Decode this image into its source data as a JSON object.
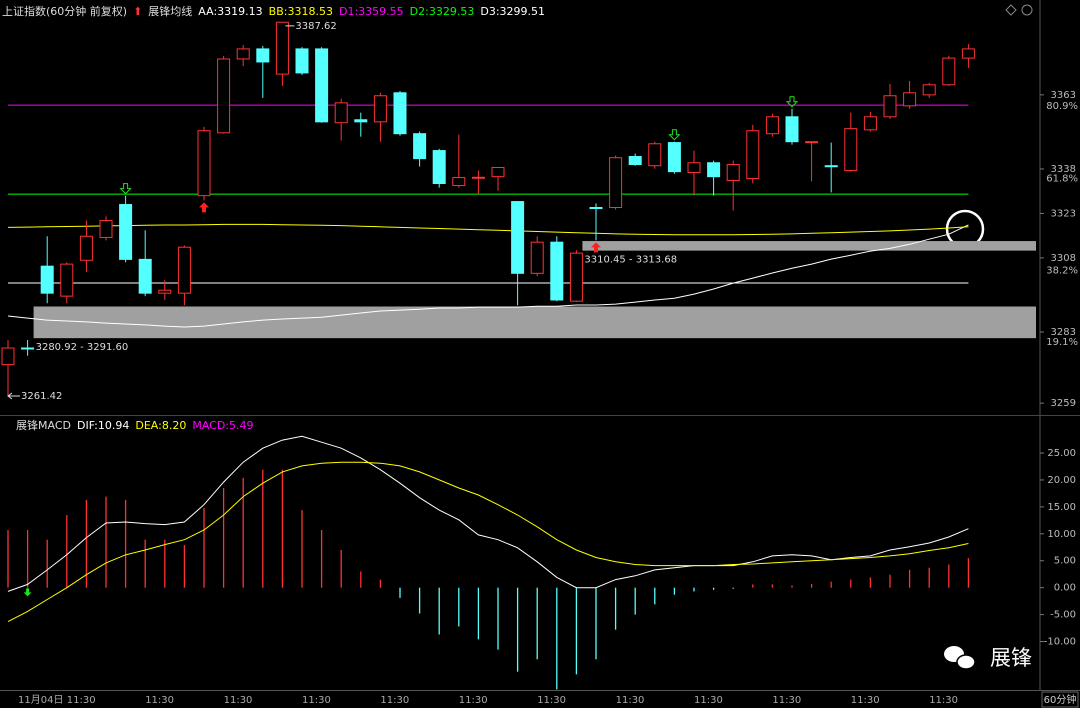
{
  "chart_data": [
    {
      "type": "candlestick",
      "title": "上证指数(60分钟 前复权)",
      "indicator_title": "展锋均线",
      "open": [
        3272,
        3277.6,
        3305.2,
        3295.1,
        3307.2,
        3314.9,
        3326,
        3307.5,
        3296.1,
        3296.1,
        3329,
        3350.2,
        3375.1,
        3378.5,
        3370,
        3378.5,
        3378.5,
        3353.6,
        3354.6,
        3353.9,
        3363.7,
        3349.9,
        3344.2,
        3332.4,
        3335,
        3335.4,
        3327,
        3302.8,
        3313.3,
        3293.4,
        3325,
        3325,
        3342.2,
        3339.1,
        3346.9,
        3336.8,
        3340.1,
        3334.1,
        3334.8,
        3349.9,
        3355.6,
        3346.9,
        3339.1,
        3337.5,
        3351.2,
        3355.6,
        3359.3,
        3363,
        3366.4,
        3375.4
      ],
      "high": [
        3280.3,
        3280.3,
        3315.3,
        3306.5,
        3320.6,
        3322,
        3329,
        3317.3,
        3300.5,
        3312.2,
        3352.2,
        3376.1,
        3379.8,
        3379.5,
        3387.62,
        3379.1,
        3379.1,
        3361.7,
        3357,
        3363.7,
        3364.3,
        3350.6,
        3344.8,
        3349.6,
        3337.5,
        3338.5,
        3327,
        3315.3,
        3315.3,
        3310.6,
        3326.4,
        3342.5,
        3343.2,
        3347.2,
        3347.2,
        3344.2,
        3340.8,
        3340.8,
        3352.9,
        3356.6,
        3358.3,
        3347.2,
        3346.9,
        3357,
        3357.3,
        3366.7,
        3367.7,
        3367,
        3376.1,
        3380.1
      ],
      "low": [
        3261.42,
        3275,
        3292.7,
        3292.7,
        3303.2,
        3313.9,
        3306.5,
        3295.1,
        3293.8,
        3292,
        3327.4,
        3349.9,
        3372.7,
        3362,
        3366,
        3369.7,
        3353.6,
        3347.5,
        3348.9,
        3347.2,
        3349.2,
        3338.8,
        3331.7,
        3331.7,
        3329.7,
        3330.7,
        3292,
        3301.8,
        3293.4,
        3293.1,
        3313.9,
        3324.3,
        3339.1,
        3338.1,
        3336.4,
        3329,
        3329,
        3324,
        3333.1,
        3348.9,
        3346.2,
        3333.8,
        3330.1,
        3337.1,
        3350.6,
        3354.9,
        3358.3,
        3362,
        3366,
        3372.1
      ],
      "close": [
        3277.6,
        3277.6,
        3296.1,
        3305.9,
        3315.3,
        3320.6,
        3307.5,
        3296.1,
        3297.1,
        3311.6,
        3350.9,
        3375.1,
        3378.5,
        3374.1,
        3387.5,
        3370.4,
        3353.9,
        3360.3,
        3353.9,
        3362.7,
        3349.9,
        3341.5,
        3333.1,
        3335.1,
        3335.2,
        3338.5,
        3302.8,
        3313.3,
        3293.8,
        3309.6,
        3325,
        3341.8,
        3339.5,
        3346.5,
        3337.1,
        3340.1,
        3335.4,
        3339.5,
        3350.9,
        3355.6,
        3347.2,
        3347.2,
        3338.8,
        3351.6,
        3355.6,
        3362.7,
        3363.7,
        3366.4,
        3375.4,
        3378.5
      ],
      "up_color": "#ff3232",
      "down_color": "#54ffff",
      "indicators": [
        {
          "name": "AA:",
          "value": 3319.13,
          "color": "#ffffff",
          "values": [
            3288.4,
            3287.7,
            3287,
            3286.7,
            3286.4,
            3286,
            3285.7,
            3285.4,
            3285,
            3284.7,
            3285,
            3285.7,
            3286.4,
            3287,
            3287.4,
            3287.7,
            3288,
            3288.7,
            3289.4,
            3290.1,
            3290.4,
            3290.7,
            3291.1,
            3291.1,
            3291.4,
            3291.4,
            3291.4,
            3291.7,
            3291.7,
            3292.1,
            3292.1,
            3292.4,
            3293.1,
            3293.8,
            3294.4,
            3295.8,
            3297.5,
            3299.5,
            3301.2,
            3302.9,
            3304.5,
            3305.9,
            3307.6,
            3308.9,
            3310.3,
            3311.2,
            3312.6,
            3314.3,
            3316,
            3319.13
          ]
        },
        {
          "name": "BB:",
          "value": 3318.53,
          "color": "#ffff00",
          "values": [
            3318.3,
            3318.4,
            3318.5,
            3318.6,
            3318.7,
            3318.8,
            3318.9,
            3319,
            3319.1,
            3319.1,
            3319.2,
            3319.3,
            3319.3,
            3319.3,
            3319.2,
            3319.1,
            3319,
            3318.9,
            3318.7,
            3318.5,
            3318.3,
            3318.1,
            3317.9,
            3317.7,
            3317.5,
            3317.3,
            3317.1,
            3316.9,
            3316.7,
            3316.5,
            3316.3,
            3316.1,
            3316,
            3315.9,
            3315.8,
            3315.8,
            3315.8,
            3315.8,
            3315.9,
            3316,
            3316.1,
            3316.3,
            3316.5,
            3316.7,
            3316.9,
            3317.1,
            3317.4,
            3317.7,
            3318.1,
            3318.53
          ]
        },
        {
          "name": "D1:",
          "value": 3359.55,
          "color": "#ff00ff",
          "hline": true
        },
        {
          "name": "D2:",
          "value": 3329.53,
          "color": "#00ff00",
          "hline": true
        },
        {
          "name": "D3:",
          "value": 3299.51,
          "color": "#ffffff",
          "hline": true
        }
      ],
      "zones": [
        {
          "low": 3280.92,
          "high": 3291.6,
          "label": "3280.92 - 3291.60",
          "start": 1
        },
        {
          "low": 3310.45,
          "high": 3313.68,
          "label": "3310.45 - 3313.68",
          "start": 29
        }
      ],
      "buy_signals": [
        10,
        30
      ],
      "sell_signals": [
        6,
        34,
        40
      ],
      "ylim": [
        3255,
        3395
      ],
      "yticks": [
        3363,
        3338,
        3323,
        3308,
        3283,
        3259
      ],
      "pct_ticks": [
        {
          "value": 3359.3,
          "label": "80.9%"
        },
        {
          "value": 3334.8,
          "label": "61.8%"
        },
        {
          "value": 3303.8,
          "label": "38.2%"
        },
        {
          "value": 3279.6,
          "label": "19.1%"
        }
      ]
    },
    {
      "type": "macd",
      "title": "展锋MACD",
      "period": "60分钟",
      "watermark": "展锋",
      "categories": [
        "11月04日",
        null,
        null,
        "11:30",
        null,
        null,
        null,
        "11:30",
        null,
        null,
        null,
        "11:30",
        null,
        null,
        null,
        "11:30",
        null,
        null,
        null,
        "11:30",
        null,
        null,
        null,
        "11:30",
        null,
        null,
        null,
        "11:30",
        null,
        null,
        null,
        "11:30",
        null,
        null,
        null,
        "11:30",
        null,
        null,
        null,
        "11:30",
        null,
        null,
        null,
        "11:30",
        null,
        null,
        null,
        "11:30",
        null,
        null
      ],
      "series": [
        {
          "name": "DIF:",
          "color": "#ffffff",
          "last": 10.94,
          "values": [
            -0.7,
            0.6,
            3.3,
            6.1,
            9.3,
            12,
            12.2,
            11.9,
            11.7,
            12.2,
            15.4,
            19.6,
            23.3,
            25.9,
            27.4,
            28.1,
            27,
            25.9,
            24.1,
            21.9,
            19.4,
            16.7,
            14.4,
            12.6,
            9.8,
            8.9,
            7.4,
            4.8,
            1.9,
            0,
            0,
            1.5,
            2.2,
            3.3,
            3.7,
            4.1,
            4.1,
            4.1,
            4.8,
            5.9,
            6.1,
            5.9,
            5.2,
            5.6,
            5.9,
            7,
            7.6,
            8.3,
            9.4,
            10.94
          ]
        },
        {
          "name": "DEA:",
          "color": "#ffff00",
          "last": 8.2,
          "last_label": "8.20",
          "values": [
            -6.3,
            -4.4,
            -2.2,
            0,
            2.4,
            4.6,
            6.1,
            7,
            8,
            8.9,
            10.7,
            13.5,
            16.9,
            19.4,
            21.5,
            22.6,
            23.1,
            23.3,
            23.3,
            23.1,
            22.6,
            21.5,
            20,
            18.5,
            17.2,
            15.4,
            13.5,
            11.3,
            8.9,
            7,
            5.6,
            4.8,
            4.3,
            4.1,
            4.1,
            4.1,
            4.1,
            4.3,
            4.4,
            4.6,
            4.8,
            5,
            5.2,
            5.4,
            5.6,
            5.9,
            6.3,
            6.9,
            7.4,
            8.2
          ]
        }
      ],
      "histogram": {
        "name": "MACD:",
        "color": "#ff00ff",
        "last": 5.49,
        "up_color": "#ff3232",
        "down_color": "#54ffff",
        "values": [
          10.7,
          10.7,
          8.9,
          13.5,
          16.3,
          16.9,
          16.3,
          8.9,
          8.9,
          7.9,
          14.8,
          18.5,
          20.4,
          21.9,
          21.9,
          14.4,
          10.7,
          7,
          3,
          1.5,
          -1.9,
          -4.8,
          -8.7,
          -7.2,
          -9.6,
          -11.5,
          -15.6,
          -13.3,
          -18.9,
          -16.1,
          -13.3,
          -7.8,
          -5,
          -3.1,
          -1.3,
          -0.7,
          -0.4,
          -0.2,
          0.6,
          0.6,
          0.4,
          0.7,
          1.1,
          1.5,
          1.9,
          2.4,
          3.3,
          3.7,
          4.3,
          5.49
        ]
      },
      "sell_signals": [
        1
      ],
      "ylim": [
        -19,
        31.5
      ],
      "yticks": [
        {
          "value": 25,
          "label": "25.00"
        },
        {
          "value": 20,
          "label": "20.00"
        },
        {
          "value": 15,
          "label": "15.00"
        },
        {
          "value": 10,
          "label": "10.00"
        },
        {
          "value": 5,
          "label": "5.00"
        },
        {
          "value": 0,
          "label": "0.00"
        },
        {
          "value": -5,
          "label": "-5.00"
        },
        {
          "value": -10,
          "label": "-10.00"
        }
      ]
    }
  ]
}
